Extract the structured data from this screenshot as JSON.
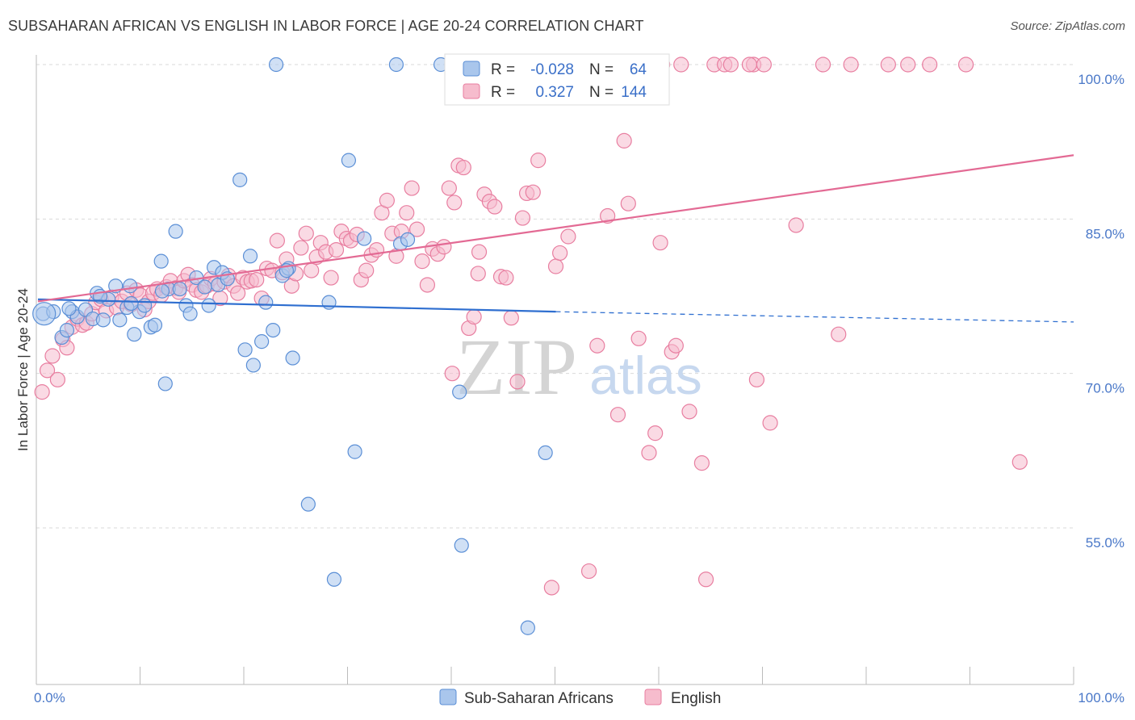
{
  "title": "SUBSAHARAN AFRICAN VS ENGLISH IN LABOR FORCE | AGE 20-24 CORRELATION CHART",
  "source": "Source: ZipAtlas.com",
  "watermark": {
    "zip": "ZIP",
    "atlas": "atlas"
  },
  "colors": {
    "blue_fill": "#a9c6ec",
    "blue_stroke": "#5b8fd6",
    "blue_line": "#2f6fd0",
    "pink_fill": "#f6bccd",
    "pink_stroke": "#e87ea0",
    "pink_line": "#e36a94",
    "grid": "#d9d9d9",
    "axis": "#bbbbbb",
    "tick_text": "#4a78c8"
  },
  "legend": {
    "r_label": "R =",
    "n_label": "N =",
    "series": [
      {
        "r": "-0.028",
        "n": "64"
      },
      {
        "r": "0.327",
        "n": "144"
      }
    ]
  },
  "chart_data": {
    "type": "scatter",
    "xlabel": "",
    "ylabel": "In Labor Force | Age 20-24",
    "xlim": [
      0,
      100
    ],
    "ylim": [
      40.5,
      101.5
    ],
    "x_tick_labels": [
      "0.0%",
      "100.0%"
    ],
    "y_ticks": [
      {
        "value": 100,
        "label": "100.0%"
      },
      {
        "value": 85,
        "label": "85.0%"
      },
      {
        "value": 70,
        "label": "70.0%"
      },
      {
        "value": 55,
        "label": "55.0%"
      }
    ],
    "grid": true,
    "series": [
      {
        "name": "Sub-Saharan Africans",
        "color": "blue",
        "trend": {
          "solid": [
            [
              0,
              77.2
            ],
            [
              50,
              76.0
            ]
          ],
          "dashed": [
            [
              50,
              76.0
            ],
            [
              100,
              75.0
            ]
          ]
        },
        "points": [
          [
            0.5,
            75.8
          ],
          [
            1.5,
            76.0
          ],
          [
            2.3,
            73.5
          ],
          [
            2.8,
            74.2
          ],
          [
            3.3,
            76.0
          ],
          [
            3.8,
            75.5
          ],
          [
            4.6,
            76.2
          ],
          [
            5.3,
            75.3
          ],
          [
            5.7,
            77.8
          ],
          [
            6.3,
            75.2
          ],
          [
            6.8,
            77.2
          ],
          [
            7.5,
            78.5
          ],
          [
            7.9,
            75.2
          ],
          [
            8.6,
            76.4
          ],
          [
            8.9,
            78.5
          ],
          [
            9.3,
            73.8
          ],
          [
            9.8,
            76.0
          ],
          [
            10.3,
            76.6
          ],
          [
            10.9,
            74.5
          ],
          [
            11.3,
            74.7
          ],
          [
            11.9,
            80.9
          ],
          [
            12.3,
            69.0
          ],
          [
            12.6,
            78.2
          ],
          [
            13.3,
            83.8
          ],
          [
            13.7,
            78.2
          ],
          [
            14.3,
            76.6
          ],
          [
            14.7,
            75.8
          ],
          [
            15.3,
            79.3
          ],
          [
            16.1,
            78.4
          ],
          [
            16.5,
            76.6
          ],
          [
            17.0,
            80.3
          ],
          [
            17.4,
            78.6
          ],
          [
            17.8,
            79.8
          ],
          [
            18.3,
            79.2
          ],
          [
            19.5,
            88.8
          ],
          [
            20.0,
            72.3
          ],
          [
            20.5,
            81.4
          ],
          [
            20.8,
            70.8
          ],
          [
            21.6,
            73.1
          ],
          [
            22.0,
            76.9
          ],
          [
            22.7,
            74.2
          ],
          [
            23.0,
            100.0
          ],
          [
            23.6,
            79.5
          ],
          [
            24.2,
            80.2
          ],
          [
            24.6,
            71.5
          ],
          [
            26.1,
            57.3
          ],
          [
            28.1,
            76.9
          ],
          [
            28.6,
            50.0
          ],
          [
            30.0,
            90.7
          ],
          [
            30.6,
            62.4
          ],
          [
            31.5,
            83.1
          ],
          [
            34.6,
            100.0
          ],
          [
            35.0,
            82.6
          ],
          [
            35.7,
            83.0
          ],
          [
            38.9,
            100.0
          ],
          [
            40.7,
            68.2
          ],
          [
            40.9,
            53.3
          ],
          [
            47.3,
            45.3
          ],
          [
            49.0,
            62.3
          ],
          [
            3.0,
            76.3
          ],
          [
            6.0,
            77.5
          ],
          [
            9.0,
            76.8
          ],
          [
            12.0,
            78.0
          ],
          [
            24.0,
            80.0
          ]
        ]
      },
      {
        "name": "English",
        "color": "pink",
        "trend": {
          "solid": [
            [
              0,
              77.0
            ],
            [
              100,
              91.2
            ]
          ]
        },
        "points": [
          [
            0.4,
            68.2
          ],
          [
            0.9,
            70.3
          ],
          [
            1.4,
            71.7
          ],
          [
            1.9,
            69.4
          ],
          [
            2.4,
            73.3
          ],
          [
            2.8,
            72.5
          ],
          [
            3.3,
            74.5
          ],
          [
            3.8,
            75.3
          ],
          [
            4.3,
            74.7
          ],
          [
            4.7,
            74.9
          ],
          [
            5.2,
            75.8
          ],
          [
            5.6,
            76.9
          ],
          [
            6.1,
            77.2
          ],
          [
            6.6,
            76.1
          ],
          [
            7.1,
            77.4
          ],
          [
            7.6,
            76.4
          ],
          [
            8.1,
            77.0
          ],
          [
            8.6,
            77.8
          ],
          [
            9.0,
            76.7
          ],
          [
            9.5,
            78.1
          ],
          [
            9.9,
            77.6
          ],
          [
            10.3,
            76.2
          ],
          [
            10.7,
            77.0
          ],
          [
            11.1,
            77.8
          ],
          [
            11.5,
            78.2
          ],
          [
            11.9,
            77.6
          ],
          [
            12.4,
            78.4
          ],
          [
            12.8,
            79.0
          ],
          [
            13.3,
            78.3
          ],
          [
            13.6,
            77.9
          ],
          [
            14.1,
            79.0
          ],
          [
            14.5,
            79.6
          ],
          [
            14.9,
            78.6
          ],
          [
            15.3,
            78.1
          ],
          [
            15.8,
            77.9
          ],
          [
            16.3,
            78.5
          ],
          [
            16.7,
            79.2
          ],
          [
            17.1,
            78.7
          ],
          [
            17.6,
            77.3
          ],
          [
            18.0,
            78.9
          ],
          [
            18.4,
            79.5
          ],
          [
            18.9,
            78.5
          ],
          [
            19.3,
            77.8
          ],
          [
            19.8,
            79.3
          ],
          [
            20.2,
            78.9
          ],
          [
            20.6,
            79.0
          ],
          [
            21.1,
            79.1
          ],
          [
            21.6,
            77.3
          ],
          [
            22.1,
            80.2
          ],
          [
            22.6,
            80.0
          ],
          [
            23.1,
            82.9
          ],
          [
            23.6,
            79.8
          ],
          [
            24.0,
            81.1
          ],
          [
            24.5,
            78.5
          ],
          [
            24.9,
            79.7
          ],
          [
            25.4,
            82.2
          ],
          [
            25.9,
            83.6
          ],
          [
            26.4,
            80.0
          ],
          [
            26.9,
            81.3
          ],
          [
            27.3,
            82.7
          ],
          [
            27.8,
            81.8
          ],
          [
            28.3,
            79.3
          ],
          [
            28.8,
            82.0
          ],
          [
            29.3,
            83.8
          ],
          [
            29.8,
            83.1
          ],
          [
            30.2,
            82.9
          ],
          [
            30.8,
            83.5
          ],
          [
            31.2,
            79.1
          ],
          [
            31.7,
            80.0
          ],
          [
            32.2,
            81.5
          ],
          [
            32.7,
            82.0
          ],
          [
            33.2,
            85.6
          ],
          [
            33.7,
            86.8
          ],
          [
            34.2,
            83.6
          ],
          [
            34.6,
            81.4
          ],
          [
            35.1,
            83.8
          ],
          [
            35.6,
            85.6
          ],
          [
            36.1,
            88.0
          ],
          [
            36.6,
            84.0
          ],
          [
            37.1,
            80.9
          ],
          [
            37.6,
            78.6
          ],
          [
            38.1,
            82.1
          ],
          [
            38.6,
            81.6
          ],
          [
            39.2,
            82.3
          ],
          [
            39.7,
            88.0
          ],
          [
            40.2,
            86.6
          ],
          [
            40.6,
            90.2
          ],
          [
            41.1,
            90.0
          ],
          [
            41.6,
            74.4
          ],
          [
            42.1,
            75.5
          ],
          [
            42.6,
            81.8
          ],
          [
            43.1,
            87.4
          ],
          [
            43.6,
            86.7
          ],
          [
            44.1,
            86.2
          ],
          [
            44.7,
            79.4
          ],
          [
            45.2,
            79.3
          ],
          [
            45.7,
            75.4
          ],
          [
            46.3,
            69.2
          ],
          [
            46.8,
            85.1
          ],
          [
            47.2,
            87.5
          ],
          [
            47.8,
            87.6
          ],
          [
            48.3,
            90.7
          ],
          [
            48.8,
            100.0
          ],
          [
            50.0,
            80.4
          ],
          [
            50.4,
            81.7
          ],
          [
            51.2,
            83.3
          ],
          [
            53.2,
            50.8
          ],
          [
            54.0,
            72.7
          ],
          [
            55.0,
            85.3
          ],
          [
            56.0,
            66.0
          ],
          [
            57.0,
            86.5
          ],
          [
            58.0,
            73.4
          ],
          [
            59.0,
            62.3
          ],
          [
            59.6,
            64.2
          ],
          [
            60.1,
            82.7
          ],
          [
            61.2,
            72.1
          ],
          [
            61.6,
            72.7
          ],
          [
            62.9,
            66.3
          ],
          [
            64.1,
            61.3
          ],
          [
            64.5,
            50.0
          ],
          [
            65.3,
            100.0
          ],
          [
            66.3,
            100.0
          ],
          [
            69.1,
            100.0
          ],
          [
            69.4,
            69.4
          ],
          [
            70.1,
            100.0
          ],
          [
            70.7,
            65.2
          ],
          [
            73.2,
            84.4
          ],
          [
            75.8,
            100.0
          ],
          [
            77.3,
            73.8
          ],
          [
            78.5,
            100.0
          ],
          [
            82.1,
            100.0
          ],
          [
            84.0,
            100.0
          ],
          [
            86.1,
            100.0
          ],
          [
            89.6,
            100.0
          ],
          [
            94.8,
            61.4
          ],
          [
            57.5,
            100.0
          ],
          [
            60.3,
            100.0
          ],
          [
            62.1,
            100.0
          ],
          [
            66.9,
            100.0
          ],
          [
            68.7,
            100.0
          ],
          [
            40.0,
            70.0
          ],
          [
            42.5,
            79.7
          ],
          [
            56.6,
            92.6
          ],
          [
            49.6,
            49.2
          ]
        ]
      }
    ]
  }
}
